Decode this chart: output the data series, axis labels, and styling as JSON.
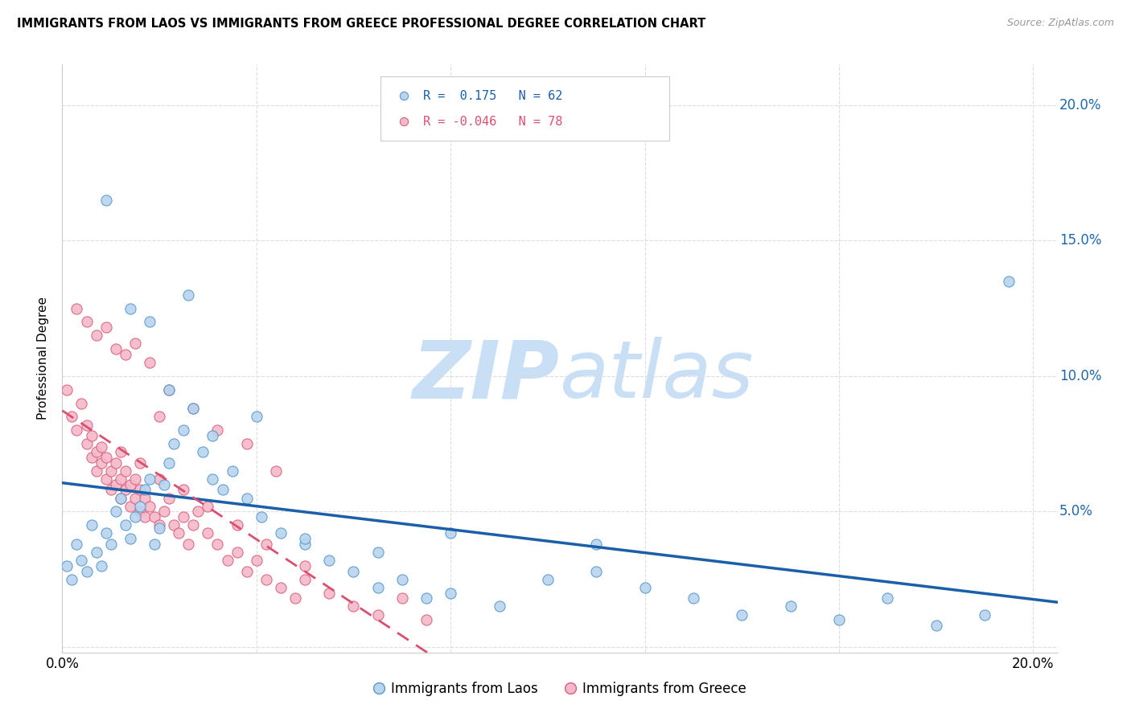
{
  "title": "IMMIGRANTS FROM LAOS VS IMMIGRANTS FROM GREECE PROFESSIONAL DEGREE CORRELATION CHART",
  "source": "Source: ZipAtlas.com",
  "ylabel": "Professional Degree",
  "legend_laos": "Immigrants from Laos",
  "legend_greece": "Immigrants from Greece",
  "r_laos": 0.175,
  "n_laos": 62,
  "r_greece": -0.046,
  "n_greece": 78,
  "xlim": [
    0.0,
    0.205
  ],
  "ylim": [
    -0.002,
    0.215
  ],
  "xticks": [
    0.0,
    0.04,
    0.08,
    0.12,
    0.16,
    0.2
  ],
  "yticks": [
    0.0,
    0.05,
    0.1,
    0.15,
    0.2
  ],
  "color_laos": "#b8d4ee",
  "color_laos_edge": "#5599cc",
  "color_laos_line": "#1a5fa8",
  "color_greece": "#f5b8c8",
  "color_greece_edge": "#d96080",
  "color_greece_line": "#d95070",
  "watermark_zip": "ZIP",
  "watermark_atlas": "atlas",
  "watermark_color_zip": "#c8dff5",
  "watermark_color_atlas": "#c8dff5",
  "laos_x": [
    0.001,
    0.002,
    0.003,
    0.004,
    0.005,
    0.006,
    0.007,
    0.008,
    0.009,
    0.01,
    0.011,
    0.012,
    0.013,
    0.014,
    0.015,
    0.016,
    0.017,
    0.018,
    0.019,
    0.02,
    0.021,
    0.022,
    0.023,
    0.025,
    0.027,
    0.029,
    0.031,
    0.033,
    0.035,
    0.038,
    0.041,
    0.045,
    0.05,
    0.055,
    0.06,
    0.065,
    0.07,
    0.075,
    0.08,
    0.09,
    0.1,
    0.11,
    0.12,
    0.13,
    0.14,
    0.15,
    0.16,
    0.17,
    0.18,
    0.19,
    0.009,
    0.014,
    0.018,
    0.022,
    0.026,
    0.031,
    0.04,
    0.05,
    0.065,
    0.08,
    0.11,
    0.195
  ],
  "laos_y": [
    0.03,
    0.025,
    0.038,
    0.032,
    0.028,
    0.045,
    0.035,
    0.03,
    0.042,
    0.038,
    0.05,
    0.055,
    0.045,
    0.04,
    0.048,
    0.052,
    0.058,
    0.062,
    0.038,
    0.044,
    0.06,
    0.068,
    0.075,
    0.08,
    0.088,
    0.072,
    0.062,
    0.058,
    0.065,
    0.055,
    0.048,
    0.042,
    0.038,
    0.032,
    0.028,
    0.022,
    0.025,
    0.018,
    0.02,
    0.015,
    0.025,
    0.028,
    0.022,
    0.018,
    0.012,
    0.015,
    0.01,
    0.018,
    0.008,
    0.012,
    0.165,
    0.125,
    0.12,
    0.095,
    0.13,
    0.078,
    0.085,
    0.04,
    0.035,
    0.042,
    0.038,
    0.135
  ],
  "greece_x": [
    0.001,
    0.002,
    0.003,
    0.004,
    0.005,
    0.005,
    0.006,
    0.006,
    0.007,
    0.007,
    0.008,
    0.008,
    0.009,
    0.009,
    0.01,
    0.01,
    0.011,
    0.011,
    0.012,
    0.012,
    0.013,
    0.013,
    0.014,
    0.014,
    0.015,
    0.015,
    0.016,
    0.016,
    0.017,
    0.017,
    0.018,
    0.019,
    0.02,
    0.021,
    0.022,
    0.023,
    0.024,
    0.025,
    0.026,
    0.027,
    0.028,
    0.03,
    0.032,
    0.034,
    0.036,
    0.038,
    0.04,
    0.042,
    0.045,
    0.048,
    0.05,
    0.055,
    0.06,
    0.065,
    0.07,
    0.075,
    0.003,
    0.005,
    0.007,
    0.009,
    0.011,
    0.013,
    0.015,
    0.018,
    0.022,
    0.027,
    0.032,
    0.038,
    0.044,
    0.012,
    0.016,
    0.02,
    0.025,
    0.03,
    0.036,
    0.042,
    0.05,
    0.02
  ],
  "greece_y": [
    0.095,
    0.085,
    0.08,
    0.09,
    0.075,
    0.082,
    0.07,
    0.078,
    0.065,
    0.072,
    0.068,
    0.074,
    0.062,
    0.07,
    0.058,
    0.065,
    0.06,
    0.068,
    0.055,
    0.062,
    0.058,
    0.065,
    0.052,
    0.06,
    0.055,
    0.062,
    0.05,
    0.058,
    0.048,
    0.055,
    0.052,
    0.048,
    0.045,
    0.05,
    0.055,
    0.045,
    0.042,
    0.048,
    0.038,
    0.045,
    0.05,
    0.042,
    0.038,
    0.032,
    0.035,
    0.028,
    0.032,
    0.025,
    0.022,
    0.018,
    0.025,
    0.02,
    0.015,
    0.012,
    0.018,
    0.01,
    0.125,
    0.12,
    0.115,
    0.118,
    0.11,
    0.108,
    0.112,
    0.105,
    0.095,
    0.088,
    0.08,
    0.075,
    0.065,
    0.072,
    0.068,
    0.062,
    0.058,
    0.052,
    0.045,
    0.038,
    0.03,
    0.085
  ]
}
